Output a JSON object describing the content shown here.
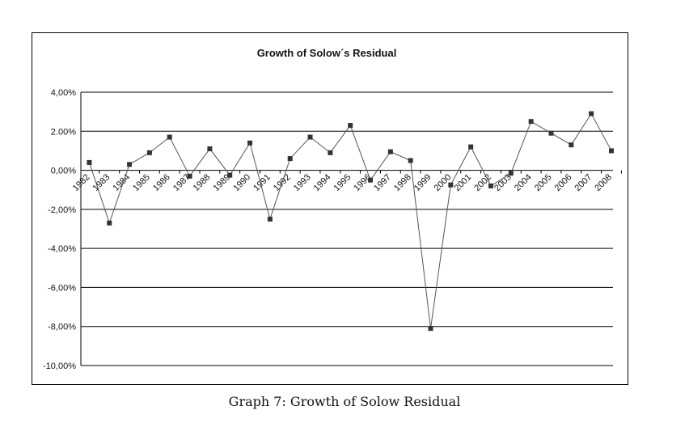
{
  "chart_data": {
    "type": "line",
    "title": "Growth of Solow´s Residual",
    "xlabel": "",
    "ylabel": "",
    "categories": [
      "1982",
      "1983",
      "1984",
      "1985",
      "1986",
      "1987",
      "1988",
      "1989",
      "1990",
      "1991",
      "1992",
      "1993",
      "1994",
      "1995",
      "1996",
      "1997",
      "1998",
      "1999",
      "2000",
      "2001",
      "2002",
      "2003",
      "2004",
      "2005",
      "2006",
      "2007",
      "2008"
    ],
    "series": [
      {
        "name": "Growth of Solow´s Residual",
        "values": [
          0.4,
          -2.7,
          0.3,
          0.9,
          1.7,
          -0.3,
          1.1,
          -0.25,
          1.4,
          -2.5,
          0.6,
          1.7,
          0.9,
          2.3,
          -0.5,
          0.95,
          0.5,
          -8.1,
          -0.75,
          1.2,
          -0.8,
          -0.15,
          2.5,
          1.9,
          1.3,
          2.9,
          1.0
        ]
      }
    ],
    "ylim": [
      -10,
      4
    ],
    "yticks": [
      4,
      2,
      0,
      -2,
      -4,
      -6,
      -8,
      -10
    ],
    "ytick_labels": [
      "4,00%",
      "2.00%",
      "0,00%",
      "-2,00%",
      "-4,00%",
      "-6,00%",
      "-8,00%",
      "-10,00%"
    ],
    "grid": true,
    "line_color": "#555555",
    "marker_color": "#333333"
  },
  "caption": "Graph 7:  Growth of Solow Residual"
}
